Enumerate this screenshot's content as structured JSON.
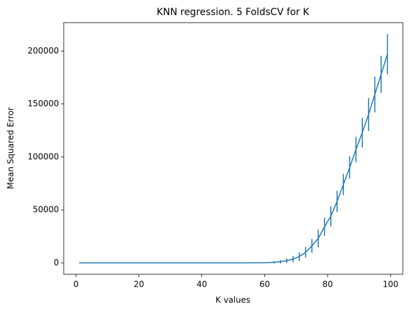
{
  "chart_data": {
    "type": "errorbar",
    "title": "KNN regression. 5 FoldsCV for K",
    "xlabel": "K values",
    "ylabel": "Mean Squared Error",
    "color": "#1f77b4",
    "x": [
      1,
      3,
      5,
      7,
      9,
      11,
      13,
      15,
      17,
      19,
      21,
      23,
      25,
      27,
      29,
      31,
      33,
      35,
      37,
      39,
      41,
      43,
      45,
      47,
      49,
      51,
      53,
      55,
      57,
      59,
      61,
      63,
      65,
      67,
      69,
      71,
      73,
      75,
      77,
      79,
      81,
      83,
      85,
      87,
      89,
      91,
      93,
      95,
      97,
      99
    ],
    "values": [
      0,
      0,
      0,
      0,
      0,
      0,
      0,
      0,
      0,
      0,
      0,
      0,
      0,
      0,
      0,
      0,
      0,
      0,
      0,
      0,
      0,
      0,
      0,
      0,
      0,
      0,
      0,
      0,
      30,
      80,
      200,
      500,
      1100,
      2000,
      3500,
      6000,
      10000,
      16000,
      23000,
      34000,
      44000,
      58000,
      74000,
      90000,
      107000,
      123000,
      140000,
      159000,
      178000,
      197000
    ],
    "errors": [
      0,
      0,
      0,
      0,
      0,
      0,
      0,
      0,
      0,
      0,
      0,
      0,
      0,
      0,
      0,
      0,
      0,
      0,
      0,
      0,
      0,
      0,
      0,
      0,
      0,
      0,
      0,
      0,
      20,
      50,
      150,
      1000,
      1500,
      2000,
      3000,
      4000,
      5000,
      6500,
      8500,
      8500,
      9500,
      10000,
      10000,
      10500,
      12000,
      14000,
      15500,
      17000,
      17500,
      19000
    ],
    "xlim": [
      -3.9,
      103.9
    ],
    "ylim": [
      -10800,
      226800
    ],
    "xticks": [
      0,
      20,
      40,
      60,
      80,
      100
    ],
    "yticks": [
      0,
      50000,
      100000,
      150000,
      200000
    ]
  }
}
